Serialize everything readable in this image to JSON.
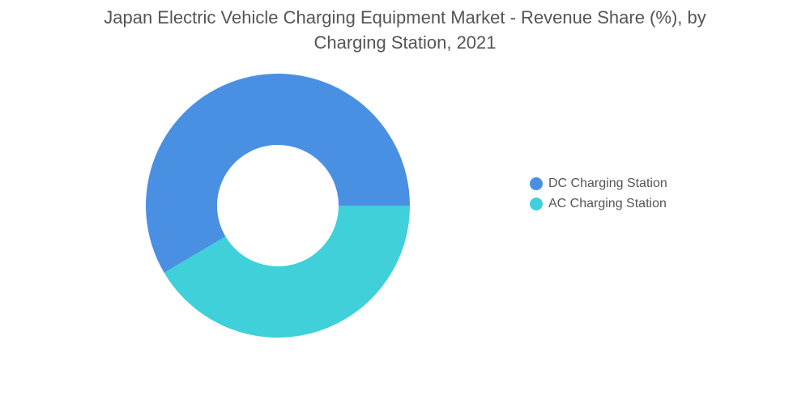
{
  "chart_data": {
    "type": "pie",
    "variant": "donut",
    "title_lines": [
      "Japan Electric Vehicle Charging Equipment Market - Revenue Share (%), by",
      "Charging Station, 2021"
    ],
    "categories": [
      "DC Charging Station",
      "AC Charging Station"
    ],
    "values": [
      58.5,
      41.5
    ],
    "unit": "%",
    "colors": [
      "#4a90e2",
      "#3fd0d9"
    ],
    "legend_position": "right"
  }
}
